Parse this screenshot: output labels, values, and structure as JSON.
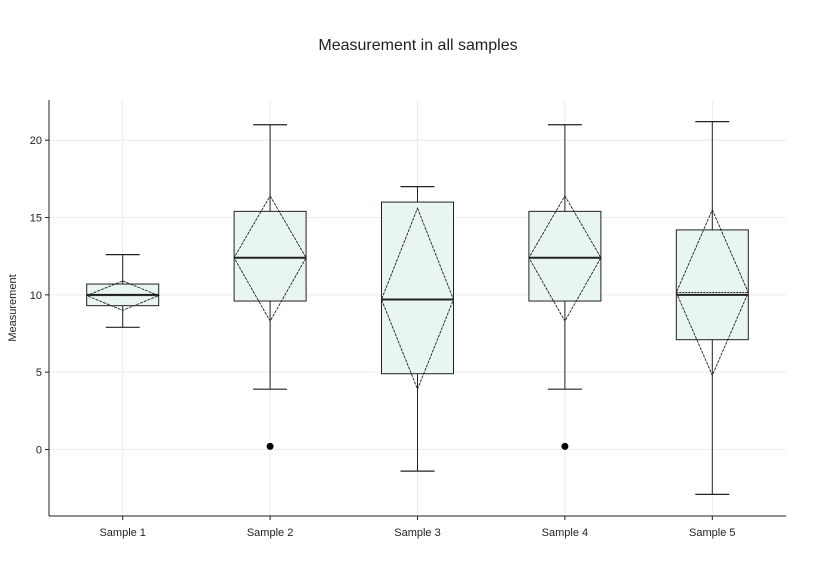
{
  "chart_data": {
    "type": "box",
    "title": "Measurement in all samples",
    "xlabel": "",
    "ylabel": "Measurement",
    "ylim": [
      -4.3,
      22.6
    ],
    "y_ticks": [
      0,
      5,
      10,
      15,
      20
    ],
    "categories": [
      "Sample 1",
      "Sample 2",
      "Sample 3",
      "Sample 4",
      "Sample 5"
    ],
    "grid": true,
    "boxes": [
      {
        "category": "Sample 1",
        "lower_whisker": 7.9,
        "q1": 9.3,
        "median": 10.0,
        "mean": 9.95,
        "q3": 10.7,
        "upper_whisker": 12.6,
        "diamond_low": 9.0,
        "diamond_high": 10.9,
        "outliers": []
      },
      {
        "category": "Sample 2",
        "lower_whisker": 3.9,
        "q1": 9.6,
        "median": 12.4,
        "mean": 12.4,
        "q3": 15.4,
        "upper_whisker": 21.0,
        "diamond_low": 8.3,
        "diamond_high": 16.4,
        "outliers": [
          0.2
        ]
      },
      {
        "category": "Sample 3",
        "lower_whisker": -1.4,
        "q1": 4.9,
        "median": 9.7,
        "mean": 9.7,
        "q3": 16.0,
        "upper_whisker": 17.0,
        "diamond_low": 3.9,
        "diamond_high": 15.6,
        "outliers": []
      },
      {
        "category": "Sample 4",
        "lower_whisker": 3.9,
        "q1": 9.6,
        "median": 12.4,
        "mean": 12.4,
        "q3": 15.4,
        "upper_whisker": 21.0,
        "diamond_low": 8.3,
        "diamond_high": 16.4,
        "outliers": [
          0.2
        ]
      },
      {
        "category": "Sample 5",
        "lower_whisker": -2.9,
        "q1": 7.1,
        "median": 10.0,
        "mean": 10.15,
        "q3": 14.2,
        "upper_whisker": 21.2,
        "diamond_low": 4.8,
        "diamond_high": 15.5,
        "outliers": []
      }
    ],
    "colors": {
      "box_fill": "#e8f5f1",
      "stroke": "#222222",
      "grid": "#ececec"
    }
  }
}
